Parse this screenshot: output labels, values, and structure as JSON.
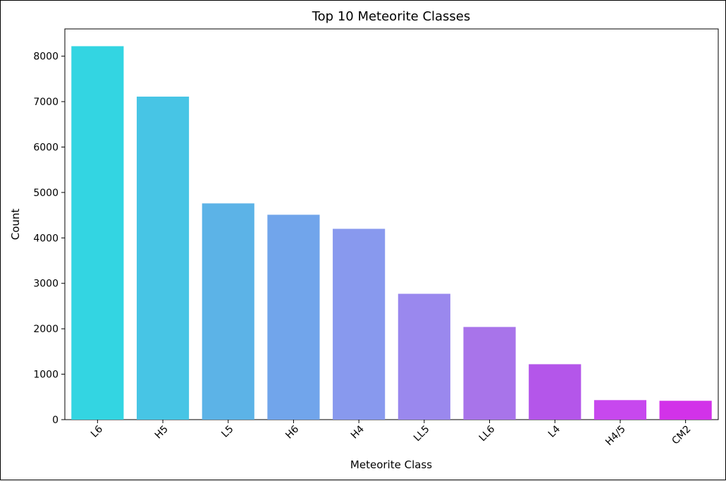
{
  "chart_data": {
    "type": "bar",
    "title": "Top 10 Meteorite Classes",
    "xlabel": "Meteorite Class",
    "ylabel": "Count",
    "categories": [
      "L6",
      "H5",
      "L5",
      "H6",
      "H4",
      "LL5",
      "LL6",
      "L4",
      "H4/5",
      "CM2"
    ],
    "values": [
      8220,
      7110,
      4760,
      4510,
      4200,
      2770,
      2040,
      1220,
      430,
      415
    ],
    "colors": [
      "#33d5e2",
      "#47c5e5",
      "#5cb3e7",
      "#71a5eb",
      "#8899ee",
      "#9a88ee",
      "#a874ea",
      "#b456ea",
      "#c748ee",
      "#d232e9"
    ],
    "ylim": [
      0,
      8600
    ],
    "yticks": [
      0,
      1000,
      2000,
      3000,
      4000,
      5000,
      6000,
      7000,
      8000
    ],
    "grid": false,
    "legend": false
  }
}
